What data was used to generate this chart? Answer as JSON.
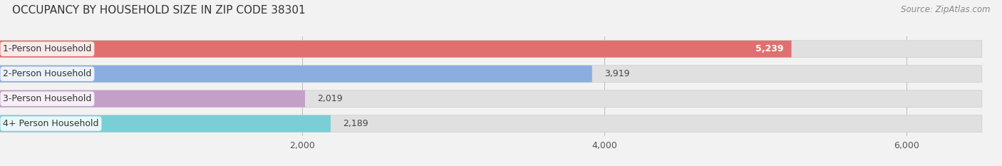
{
  "title": "OCCUPANCY BY HOUSEHOLD SIZE IN ZIP CODE 38301",
  "source": "Source: ZipAtlas.com",
  "categories": [
    "1-Person Household",
    "2-Person Household",
    "3-Person Household",
    "4+ Person Household"
  ],
  "values": [
    5239,
    3919,
    2019,
    2189
  ],
  "bar_colors": [
    "#E07070",
    "#8AAEE0",
    "#C4A0C8",
    "#7ACFD6"
  ],
  "xlim": [
    0,
    6500
  ],
  "xticks": [
    2000,
    4000,
    6000
  ],
  "xtick_labels": [
    "2,000",
    "4,000",
    "6,000"
  ],
  "background_color": "#f2f2f2",
  "bar_bg_color": "#e0e0e0",
  "bar_height": 0.68,
  "title_fontsize": 11,
  "source_fontsize": 8.5,
  "bar_label_fontsize": 9,
  "value_label_fontsize": 9,
  "tick_fontsize": 9
}
